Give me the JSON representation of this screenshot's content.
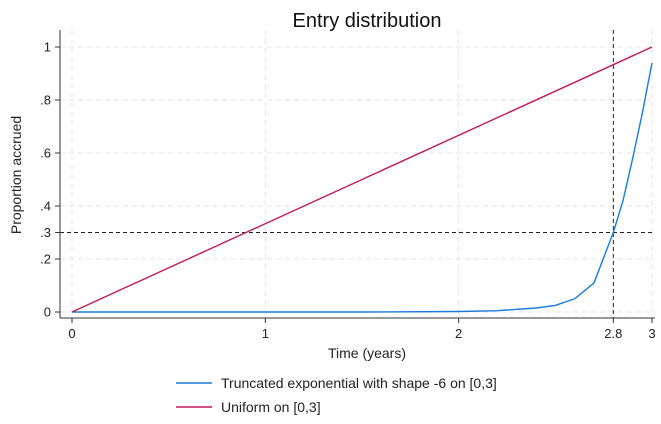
{
  "chart_data": {
    "type": "line",
    "title": "Entry distribution",
    "xlabel": "Time (years)",
    "ylabel": "Proportion accrued",
    "xlim": [
      0,
      3
    ],
    "ylim": [
      0,
      1
    ],
    "x_ticks": [
      0,
      1,
      2,
      2.8,
      3
    ],
    "x_tick_labels": [
      "0",
      "1",
      "2",
      "2.8",
      "3"
    ],
    "y_ticks": [
      0,
      0.2,
      0.3,
      0.4,
      0.6,
      0.8,
      1
    ],
    "y_tick_labels": [
      "0",
      ".2",
      ".3",
      ".4",
      ".6",
      ".8",
      "1"
    ],
    "grid": true,
    "reference_lines": [
      {
        "axis": "x",
        "value": 2.8,
        "style": "dashed"
      },
      {
        "axis": "y",
        "value": 0.3,
        "style": "dashed"
      }
    ],
    "series": [
      {
        "name": "Truncated exponential with shape -6 on [0,3]",
        "color": "#1a7bd8",
        "x": [
          0,
          0.5,
          1.0,
          1.5,
          2.0,
          2.2,
          2.4,
          2.5,
          2.6,
          2.7,
          2.8,
          2.85,
          2.9,
          2.95,
          3.0
        ],
        "y": [
          0,
          0.0,
          0.0,
          0.0,
          0.002,
          0.005,
          0.015,
          0.025,
          0.05,
          0.11,
          0.3,
          0.42,
          0.58,
          0.75,
          0.94
        ]
      },
      {
        "name": "Uniform on [0,3]",
        "color": "#c1185c",
        "x": [
          0,
          3
        ],
        "y": [
          0,
          1
        ]
      }
    ],
    "legend": "bottom"
  }
}
